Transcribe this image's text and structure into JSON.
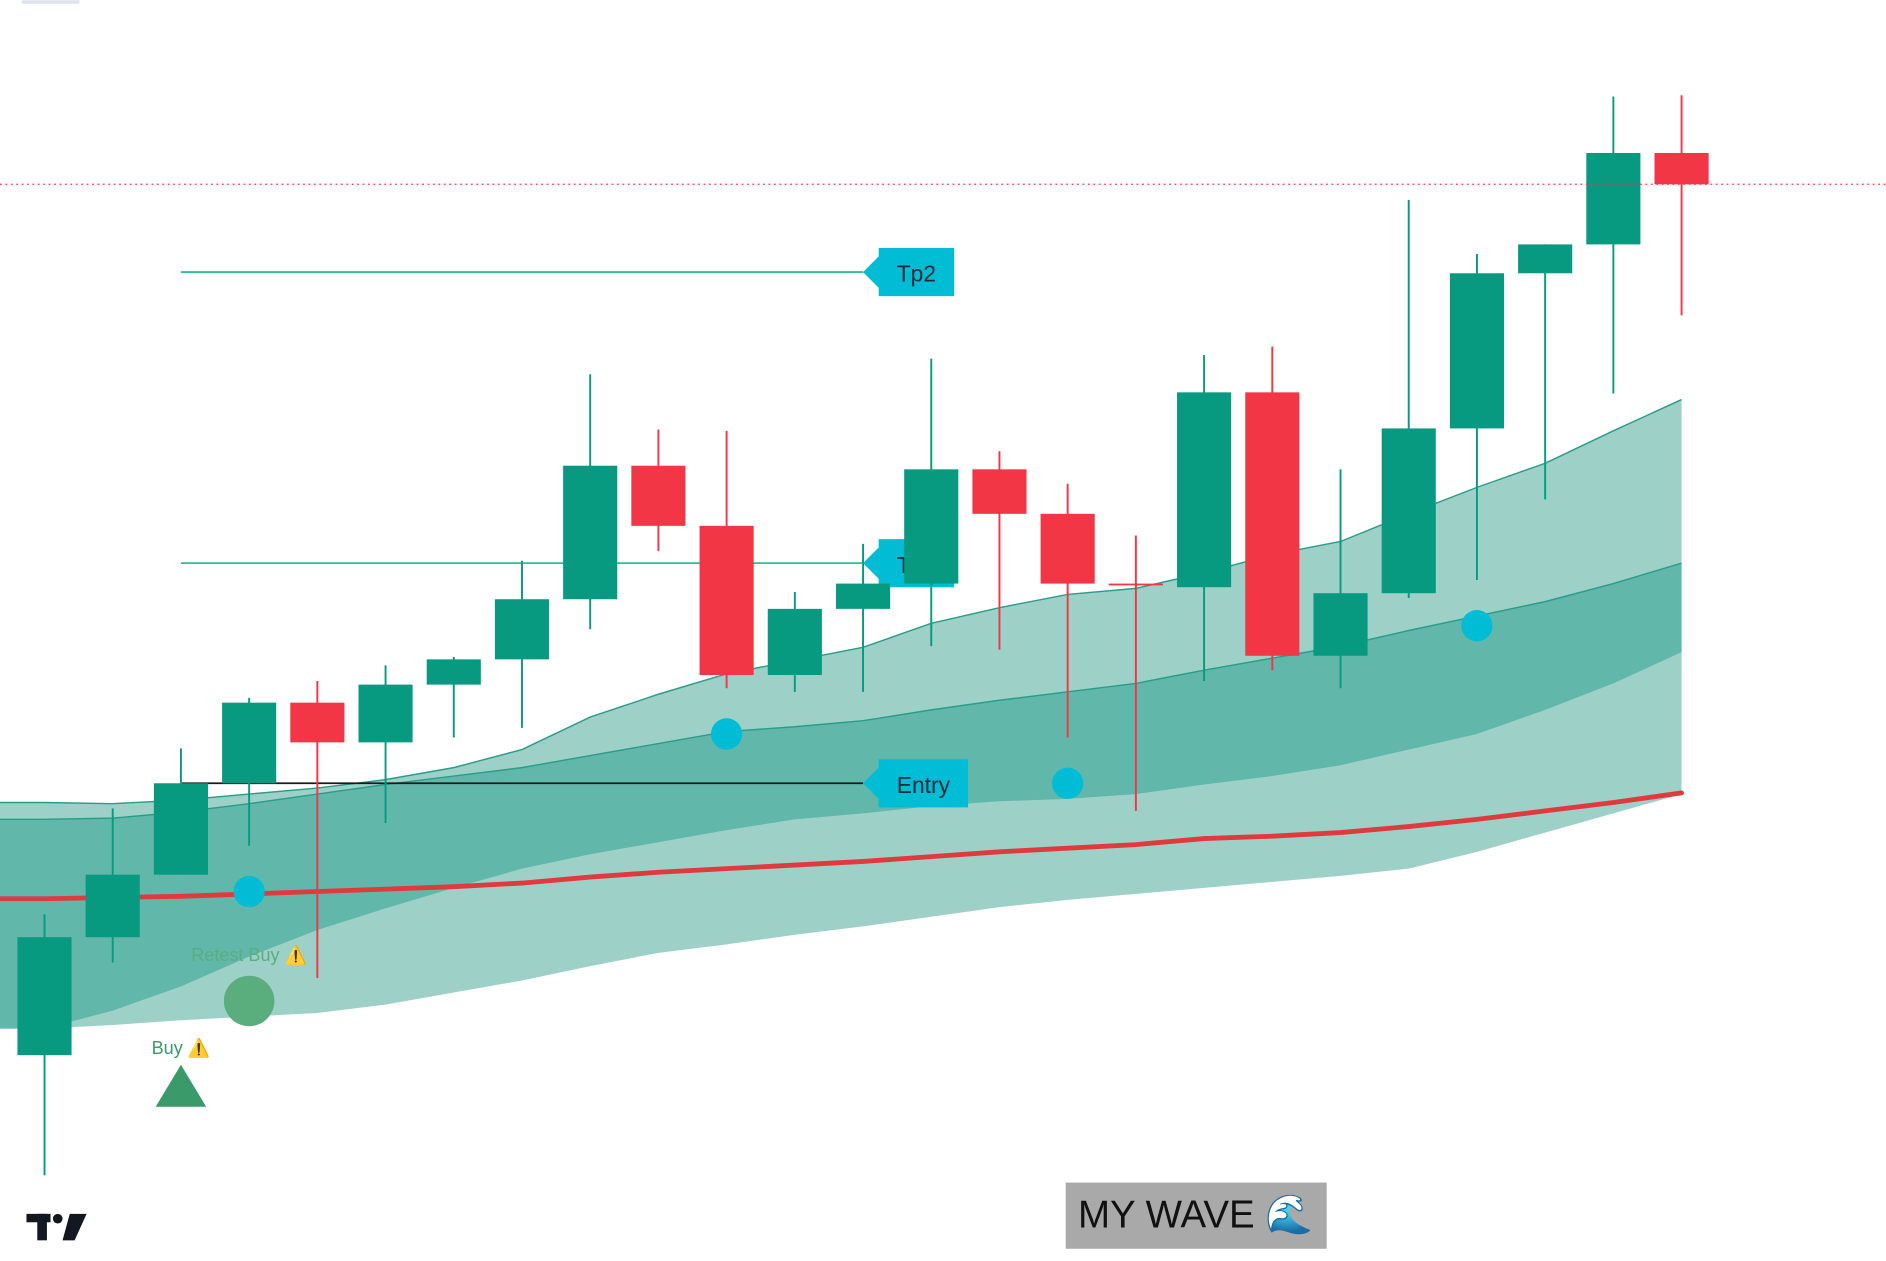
{
  "chart_data": {
    "type": "candlestick",
    "ylim": [
      0,
      1048
    ],
    "grid": true,
    "up_color": "#089981",
    "down_color": "#f23645",
    "open": [
      171,
      269,
      321,
      397,
      464,
      431,
      479,
      500,
      550,
      661,
      611,
      487,
      542,
      563,
      658,
      621,
      563,
      560,
      722,
      503,
      555,
      692,
      821,
      845,
      921
    ],
    "high": [
      288,
      376,
      426,
      468,
      482,
      495,
      502,
      582,
      737,
      691,
      690,
      556,
      596,
      750,
      673,
      646,
      603,
      753,
      760,
      658,
      882,
      837,
      845,
      968,
      969
    ],
    "low": [
      71,
      248,
      321,
      345,
      235,
      364,
      435,
      443,
      525,
      590,
      476,
      473,
      473,
      511,
      508,
      435,
      374,
      482,
      491,
      476,
      551,
      566,
      633,
      721,
      786
    ],
    "close": [
      269,
      321,
      397,
      464,
      431,
      479,
      500,
      550,
      661,
      611,
      487,
      542,
      563,
      658,
      621,
      563,
      562,
      722,
      503,
      555,
      692,
      821,
      845,
      921,
      895
    ],
    "envelope": {
      "fill": "#9dd1c8",
      "inner_fill": "#62b7ab",
      "line_color": "#2a9d8a",
      "upper": [
        381,
        380,
        383,
        388,
        393,
        400,
        410,
        425,
        452,
        471,
        488,
        499,
        510,
        530,
        543,
        554,
        559,
        572,
        587,
        598,
        621,
        643,
        663,
        690,
        716
      ],
      "inner_upper": [
        367,
        368,
        373,
        380,
        388,
        396,
        403,
        410,
        420,
        430,
        440,
        444,
        449,
        458,
        466,
        473,
        480,
        491,
        501,
        511,
        524,
        536,
        548,
        563,
        580
      ],
      "inner_lower": [
        193,
        208,
        228,
        253,
        275,
        293,
        310,
        326,
        338,
        348,
        358,
        367,
        372,
        378,
        382,
        384,
        388,
        396,
        403,
        412,
        425,
        438,
        458,
        480,
        506
      ],
      "lower": [
        193,
        196,
        200,
        203,
        206,
        213,
        223,
        233,
        245,
        256,
        263,
        271,
        278,
        286,
        294,
        300,
        305,
        310,
        315,
        320,
        326,
        340,
        356,
        372,
        388
      ]
    },
    "ma": {
      "color": "#e03a3e",
      "values": [
        301,
        302,
        303,
        305,
        307,
        309,
        311,
        314,
        319,
        323,
        326,
        329,
        332,
        336,
        340,
        343,
        346,
        351,
        353,
        356,
        361,
        367,
        374,
        381,
        389
      ]
    },
    "levels": [
      {
        "label": "Tp2",
        "value": 822,
        "from": 2,
        "to": 12,
        "color": "#2ebf9a"
      },
      {
        "label": "Tp1",
        "value": 580,
        "from": 2,
        "to": 12,
        "color": "#2ebf9a"
      },
      {
        "label": "Entry",
        "value": 397,
        "from": 2,
        "to": 12,
        "color": "#1a1a1a"
      }
    ],
    "dots": {
      "color": "#00bcd4",
      "indices": [
        3,
        10,
        15,
        21
      ],
      "values": [
        307,
        438,
        397,
        528
      ]
    },
    "signals": [
      {
        "text": "Buy ⚠️",
        "index": 2,
        "value": 145,
        "shape": "triangle",
        "color": "#3a9a6a"
      },
      {
        "text": "Retest Buy ⚠️",
        "index": 3,
        "value": 216,
        "shape": "circle",
        "color": "#5aae7e"
      }
    ],
    "watermark": "MY WAVE 🌊"
  }
}
